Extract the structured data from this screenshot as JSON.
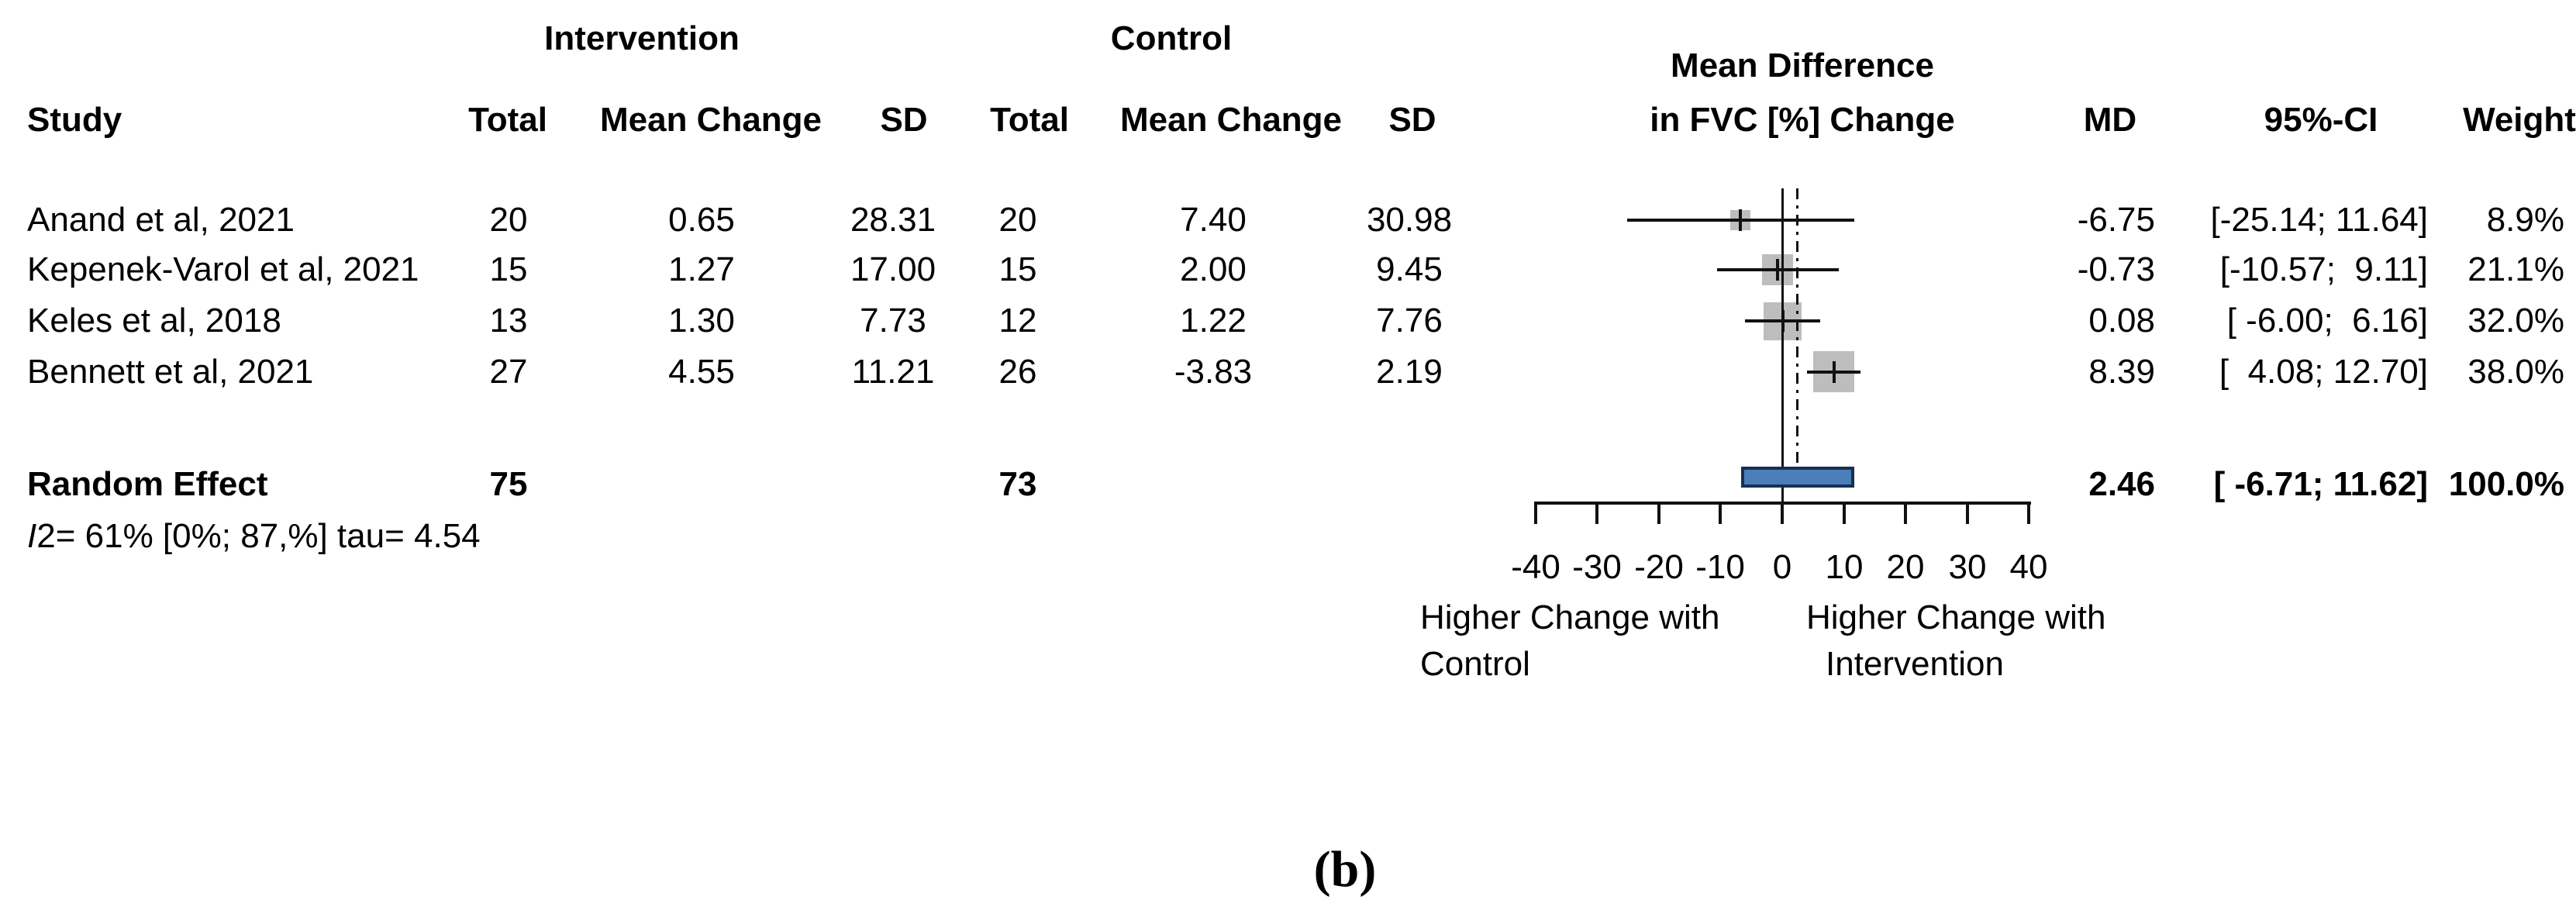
{
  "figure": {
    "caption": "(b)"
  },
  "table": {
    "group_headers": {
      "intervention": "Intervention",
      "control": "Control"
    },
    "effect_header": {
      "line1": "Mean Difference",
      "line2": "in FVC [%] Change"
    },
    "columns": {
      "study": "Study",
      "total_intervention": "Total",
      "mean_change_intervention": "Mean Change",
      "sd_intervention": "SD",
      "total_control": "Total",
      "mean_change_control": "Mean Change",
      "sd_control": "SD",
      "md": "MD",
      "ci": "95%-CI",
      "weight": "Weight"
    },
    "rows": [
      {
        "study": "Anand et al, 2021",
        "total_i": "20",
        "mean_i": "0.65",
        "sd_i": "28.31",
        "total_c": "20",
        "mean_c": "7.40",
        "sd_c": "30.98",
        "md": "-6.75",
        "ci": "[-25.14; 11.64]",
        "weight": "8.9%"
      },
      {
        "study": "Kepenek-Varol et al, 2021",
        "total_i": "15",
        "mean_i": "1.27",
        "sd_i": "17.00",
        "total_c": "15",
        "mean_c": "2.00",
        "sd_c": "9.45",
        "md": "-0.73",
        "ci": "[-10.57;  9.11]",
        "weight": "21.1%"
      },
      {
        "study": "Keles et al, 2018",
        "total_i": "13",
        "mean_i": "1.30",
        "sd_i": "7.73",
        "total_c": "12",
        "mean_c": "1.22",
        "sd_c": "7.76",
        "md": "0.08",
        "ci": "[ -6.00;  6.16]",
        "weight": "32.0%"
      },
      {
        "study": "Bennett et al, 2021",
        "total_i": "27",
        "mean_i": "4.55",
        "sd_i": "11.21",
        "total_c": "26",
        "mean_c": "-3.83",
        "sd_c": "2.19",
        "md": "8.39",
        "ci": "[  4.08; 12.70]",
        "weight": "38.0%"
      }
    ],
    "pooled": {
      "label": "Random Effect",
      "total_i": "75",
      "total_c": "73",
      "md": "2.46",
      "ci": "[ -6.71; 11.62]",
      "weight": "100.0%"
    },
    "heterogeneity": {
      "stat_letter": "I",
      "stat_exp": "2",
      "text_rest": "= 61% [0%; 87,%] tau= 4.54"
    }
  },
  "chart_data": {
    "type": "forest",
    "title": "Mean Difference in FVC [%] Change",
    "x_axis": {
      "range": [
        -40,
        40
      ],
      "ticks": [
        -40,
        -30,
        -20,
        -10,
        0,
        10,
        20,
        30,
        40
      ],
      "zero_line": 0,
      "pooled_reference_line": 2.46,
      "grid": false
    },
    "studies": [
      {
        "name": "Anand et al, 2021",
        "md": -6.75,
        "ci_low": -25.14,
        "ci_high": 11.64,
        "weight_pct": 8.9
      },
      {
        "name": "Kepenek-Varol et al, 2021",
        "md": -0.73,
        "ci_low": -10.57,
        "ci_high": 9.11,
        "weight_pct": 21.1
      },
      {
        "name": "Keles et al, 2018",
        "md": 0.08,
        "ci_low": -6.0,
        "ci_high": 6.16,
        "weight_pct": 32.0
      },
      {
        "name": "Bennett et al, 2021",
        "md": 8.39,
        "ci_low": 4.08,
        "ci_high": 12.7,
        "weight_pct": 38.0
      }
    ],
    "pooled": {
      "name": "Random Effect",
      "md": 2.46,
      "ci_low": -6.71,
      "ci_high": 11.62,
      "weight_pct": 100.0,
      "heterogeneity": "I2= 61% [0%; 87,%] tau= 4.54"
    },
    "axis_labels": {
      "left_line1": "Higher Change with",
      "left_line2": "Control",
      "right_line1": "Higher Change with",
      "right_line2": "Intervention"
    },
    "colors": {
      "pooled_bar_fill": "#4a7eb8",
      "pooled_bar_border": "#16304f",
      "study_square": "#bdbdbd",
      "line": "#111111"
    }
  }
}
